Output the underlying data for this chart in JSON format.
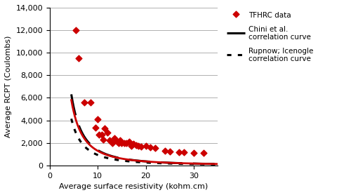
{
  "title": "",
  "xlabel": "Average surface resistivity (kohm.cm)",
  "ylabel": "Average RCPT (Coulombs)",
  "xlim": [
    0,
    35
  ],
  "ylim": [
    0,
    14000
  ],
  "xticks": [
    0,
    10,
    20,
    30
  ],
  "yticks": [
    0,
    2000,
    4000,
    6000,
    8000,
    10000,
    12000,
    14000
  ],
  "scatter_x": [
    5.5,
    6.0,
    7.2,
    8.5,
    9.5,
    10.0,
    10.3,
    10.8,
    11.2,
    11.5,
    12.0,
    12.5,
    13.0,
    13.5,
    14.0,
    14.3,
    14.7,
    15.0,
    15.5,
    16.0,
    16.5,
    17.0,
    17.5,
    18.0,
    18.5,
    19.0,
    20.0,
    21.0,
    22.0,
    24.0,
    25.0,
    27.0,
    28.0,
    30.0,
    32.0
  ],
  "scatter_y": [
    12000,
    9500,
    5600,
    5600,
    3350,
    4100,
    2700,
    2700,
    2300,
    3300,
    2900,
    2200,
    2000,
    2400,
    2100,
    1950,
    2200,
    1950,
    2000,
    2000,
    2100,
    1750,
    1900,
    1800,
    1750,
    1650,
    1700,
    1600,
    1550,
    1300,
    1250,
    1200,
    1150,
    1100,
    1100
  ],
  "scatter_color": "#cc0000",
  "scatter_marker": "D",
  "scatter_size": 20,
  "chini_color": "#000000",
  "chini_lw": 2.2,
  "chini_dash": [
    10,
    5
  ],
  "rupnow_color": "#000000",
  "rupnow_lw": 2.2,
  "rupnow_dot": [
    2,
    3
  ],
  "tfhrc_curve_color": "#cc0000",
  "tfhrc_curve_lw": 2.0,
  "legend_tfhrc": "TFHRC data",
  "legend_chini": "Chini et al.\ncorrelation curve",
  "legend_rupnow": "Rupnow; Icenogle\ncorrelation curve",
  "bg_color": "#ffffff",
  "grid_color": "#b0b0b0",
  "tfhrc_A": 98000,
  "tfhrc_B": -1.88,
  "chini_A": 115000,
  "chini_B": -1.93,
  "rupnow_A": 70000,
  "rupnow_B": -1.88
}
